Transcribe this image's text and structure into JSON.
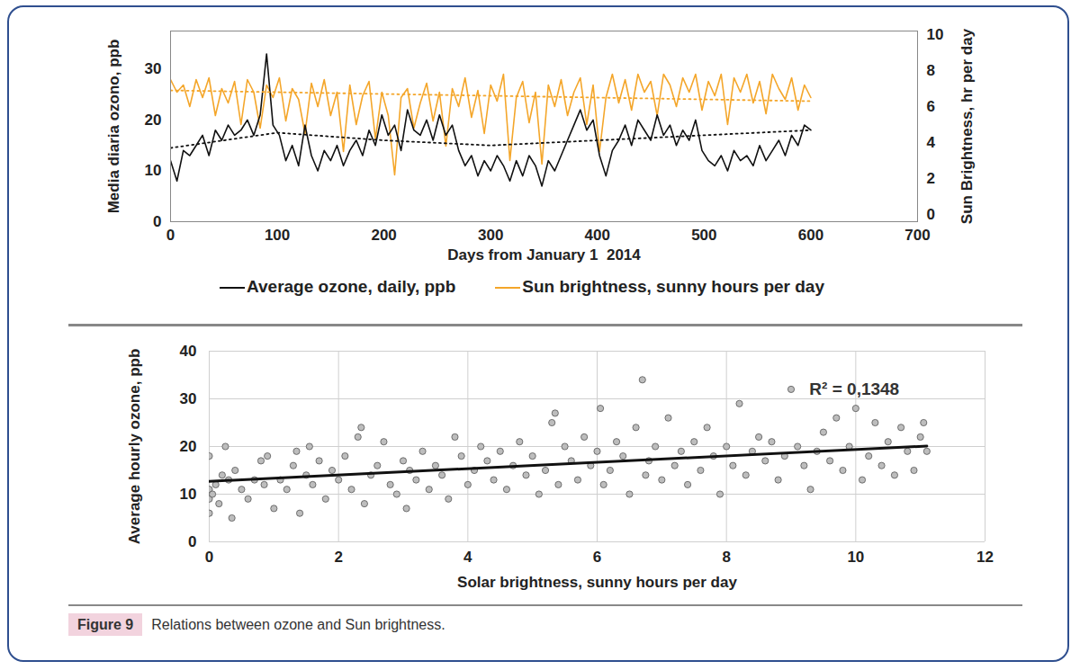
{
  "chart_data": [
    {
      "type": "line",
      "x_label": "Days from January 1  2014",
      "y_label": "Media diaria ozono, ppb",
      "y2_label": "Sun Brightness, hr per day",
      "xlim": [
        0,
        700
      ],
      "xticks": [
        0,
        100,
        200,
        300,
        400,
        500,
        600,
        700
      ],
      "ylim": [
        0,
        37.5
      ],
      "yticks": [
        0,
        10,
        20,
        30
      ],
      "y2lim": [
        -0.4,
        10.2
      ],
      "y2ticks": [
        0,
        2,
        4,
        6,
        8,
        10
      ],
      "grid": false,
      "legend": "bottom",
      "series": [
        {
          "name": "Sun brightness, sunny hours per day",
          "color": "#f4a62a",
          "axis": "y2",
          "line_style": "solid",
          "x": [
            0,
            6,
            12,
            18,
            24,
            30,
            36,
            42,
            48,
            54,
            60,
            66,
            72,
            78,
            84,
            90,
            96,
            102,
            108,
            114,
            120,
            126,
            132,
            138,
            144,
            150,
            156,
            162,
            168,
            174,
            180,
            186,
            192,
            198,
            204,
            210,
            216,
            222,
            228,
            234,
            240,
            246,
            252,
            258,
            264,
            270,
            276,
            282,
            288,
            294,
            300,
            306,
            312,
            318,
            324,
            330,
            336,
            342,
            348,
            354,
            360,
            366,
            372,
            378,
            384,
            390,
            396,
            402,
            408,
            414,
            420,
            426,
            432,
            438,
            444,
            450,
            456,
            462,
            468,
            474,
            480,
            486,
            492,
            498,
            504,
            510,
            516,
            522,
            528,
            534,
            540,
            546,
            552,
            558,
            564,
            570,
            576,
            582,
            588,
            594,
            600
          ],
          "values": [
            7.5,
            6.8,
            7.2,
            6,
            7.5,
            6.5,
            7.6,
            5.5,
            7,
            6.2,
            7.4,
            5,
            7.5,
            6.8,
            4.8,
            7.2,
            6.5,
            7.6,
            5.2,
            7,
            6.4,
            4.5,
            7.3,
            6,
            7.5,
            5.5,
            6.8,
            3.5,
            7.2,
            5,
            6.6,
            7.4,
            4.2,
            6.8,
            5.5,
            2.2,
            6.5,
            7,
            4.8,
            6.2,
            7.3,
            5.2,
            6.8,
            3.8,
            7,
            6,
            7.6,
            5.4,
            6.9,
            4.5,
            7.2,
            6.3,
            7.8,
            3,
            6.5,
            7.4,
            5.1,
            6.8,
            2.8,
            7.2,
            6,
            7.5,
            5.5,
            6.8,
            7.6,
            5,
            7.2,
            3.5,
            6.5,
            7.8,
            6.2,
            7.5,
            5.8,
            7.8,
            6.8,
            7.4,
            5.5,
            7.8,
            7.2,
            6,
            7.6,
            6.8,
            7.8,
            5.8,
            7.4,
            6.6,
            7.8,
            5,
            7.6,
            6.8,
            7.8,
            6.2,
            7.4,
            5.6,
            7.8,
            7,
            6.4,
            7.6,
            5.8,
            7.2,
            6.5
          ]
        },
        {
          "name": "Average ozone, daily, ppb",
          "color": "#111111",
          "line_style": "solid",
          "x": [
            0,
            6,
            12,
            18,
            24,
            30,
            36,
            42,
            48,
            54,
            60,
            66,
            72,
            78,
            84,
            90,
            96,
            102,
            108,
            114,
            120,
            126,
            132,
            138,
            144,
            150,
            156,
            162,
            168,
            174,
            180,
            186,
            192,
            198,
            204,
            210,
            216,
            222,
            228,
            234,
            240,
            246,
            252,
            258,
            264,
            270,
            276,
            282,
            288,
            294,
            300,
            306,
            312,
            318,
            324,
            330,
            336,
            342,
            348,
            354,
            360,
            366,
            372,
            378,
            384,
            390,
            396,
            402,
            408,
            414,
            420,
            426,
            432,
            438,
            444,
            450,
            456,
            462,
            468,
            474,
            480,
            486,
            492,
            498,
            504,
            510,
            516,
            522,
            528,
            534,
            540,
            546,
            552,
            558,
            564,
            570,
            576,
            582,
            588,
            594,
            600
          ],
          "values": [
            12,
            8,
            14,
            13,
            15,
            17,
            13,
            18,
            16,
            19,
            17,
            18,
            20,
            17,
            21,
            33,
            19,
            17,
            12,
            15,
            11,
            19,
            13,
            10,
            14,
            12,
            15,
            11,
            14,
            16,
            13,
            18,
            15,
            21,
            17,
            19,
            14,
            22,
            18,
            17,
            20,
            16,
            21,
            17,
            19,
            14,
            11,
            13,
            9,
            12,
            10,
            13,
            11,
            8,
            12,
            9,
            13,
            11,
            7,
            12,
            10,
            13,
            16,
            19,
            22,
            18,
            20,
            13,
            9,
            14,
            16,
            19,
            15,
            20,
            18,
            16,
            21,
            17,
            19,
            15,
            18,
            16,
            20,
            14,
            12,
            11,
            13,
            10,
            14,
            12,
            13,
            11,
            15,
            12,
            14,
            16,
            13,
            17,
            15,
            19,
            18
          ]
        },
        {
          "color": "#f4a62a",
          "axis": "y2",
          "line_style": "dotted",
          "x": [
            0,
            100,
            200,
            300,
            400,
            500,
            600
          ],
          "values": [
            6.9,
            6.8,
            6.7,
            6.6,
            6.5,
            6.4,
            6.3
          ]
        },
        {
          "color": "#111111",
          "line_style": "dotted",
          "x": [
            0,
            100,
            200,
            300,
            400,
            500,
            600
          ],
          "values": [
            14.5,
            17.5,
            16,
            15,
            16,
            17,
            18
          ]
        }
      ]
    },
    {
      "type": "scatter",
      "x_label": "Solar brightness, sunny hours per day",
      "y_label": "Average hourly ozone, ppb",
      "xlim": [
        0,
        12
      ],
      "xticks": [
        0,
        2,
        4,
        6,
        8,
        10,
        12
      ],
      "ylim": [
        0,
        40
      ],
      "yticks": [
        0,
        10,
        20,
        30,
        40
      ],
      "grid": true,
      "annotations": [
        {
          "text": "R² = 0,1348",
          "x": 9.2,
          "y": 32
        }
      ],
      "series": [
        {
          "type": "scatter",
          "marker": "circle",
          "color": "#bdbdbd",
          "x": [
            0,
            0,
            0,
            0,
            0.05,
            0.1,
            0.15,
            0.2,
            0.25,
            0.3,
            0.35,
            0.4,
            0.5,
            0.6,
            0.7,
            0.8,
            0.85,
            0.9,
            1.0,
            1.1,
            1.2,
            1.3,
            1.35,
            1.4,
            1.5,
            1.55,
            1.6,
            1.7,
            1.8,
            1.9,
            2.0,
            2.1,
            2.2,
            2.3,
            2.35,
            2.4,
            2.5,
            2.6,
            2.7,
            2.8,
            2.9,
            3.0,
            3.05,
            3.1,
            3.2,
            3.3,
            3.4,
            3.5,
            3.6,
            3.7,
            3.8,
            3.9,
            4.0,
            4.1,
            4.2,
            4.3,
            4.4,
            4.5,
            4.6,
            4.7,
            4.8,
            4.9,
            5.0,
            5.1,
            5.2,
            5.3,
            5.35,
            5.4,
            5.5,
            5.6,
            5.7,
            5.8,
            5.9,
            6.0,
            6.05,
            6.1,
            6.2,
            6.3,
            6.4,
            6.5,
            6.6,
            6.7,
            6.75,
            6.8,
            6.9,
            7.0,
            7.1,
            7.2,
            7.3,
            7.4,
            7.5,
            7.6,
            7.7,
            7.8,
            7.9,
            8.0,
            8.1,
            8.2,
            8.3,
            8.4,
            8.5,
            8.6,
            8.7,
            8.8,
            8.9,
            9.0,
            9.1,
            9.2,
            9.3,
            9.4,
            9.5,
            9.6,
            9.7,
            9.8,
            9.9,
            10.0,
            10.1,
            10.2,
            10.3,
            10.4,
            10.5,
            10.6,
            10.7,
            10.8,
            10.9,
            11.0,
            11.05,
            11.1
          ],
          "values": [
            18,
            11,
            9,
            6,
            10,
            12,
            8,
            14,
            20,
            13,
            5,
            15,
            11,
            9,
            13,
            17,
            12,
            18,
            7,
            13,
            11,
            16,
            19,
            6,
            14,
            20,
            12,
            17,
            9,
            15,
            13,
            18,
            11,
            22,
            24,
            8,
            14,
            16,
            21,
            12,
            10,
            17,
            7,
            15,
            13,
            19,
            11,
            16,
            14,
            9,
            22,
            18,
            12,
            15,
            20,
            17,
            13,
            19,
            11,
            16,
            21,
            14,
            18,
            10,
            15,
            25,
            27,
            12,
            20,
            17,
            13,
            22,
            16,
            19,
            28,
            12,
            15,
            21,
            18,
            10,
            24,
            34,
            14,
            17,
            20,
            13,
            26,
            16,
            19,
            12,
            21,
            15,
            24,
            18,
            10,
            20,
            16,
            29,
            14,
            19,
            22,
            17,
            21,
            13,
            18,
            32,
            20,
            16,
            11,
            19,
            23,
            17,
            26,
            15,
            20,
            28,
            13,
            18,
            25,
            16,
            21,
            14,
            24,
            19,
            15,
            22,
            25,
            19
          ]
        },
        {
          "type": "line",
          "line_style": "solid",
          "color": "#111111",
          "x": [
            0,
            11.1
          ],
          "values": [
            12.7,
            20.1
          ]
        }
      ]
    }
  ],
  "figure_label": "Figure 9",
  "caption": "Relations between ozone and Sun brightness."
}
